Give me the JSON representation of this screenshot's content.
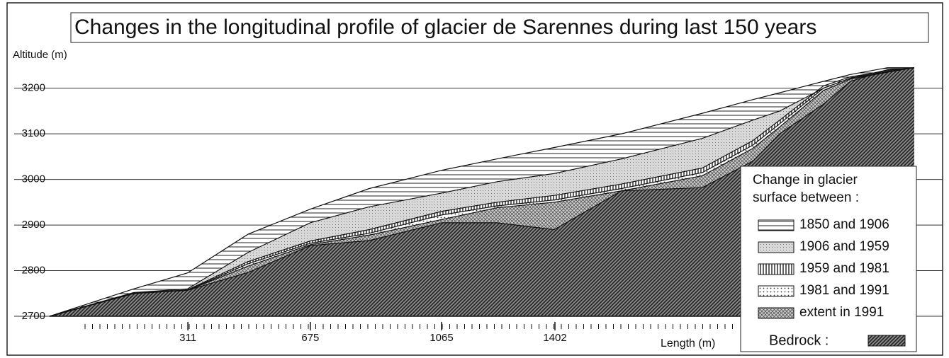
{
  "chart_data": {
    "type": "area",
    "title": "Changes in the longitudinal profile of glacier de Sarennes during last 150 years",
    "y_label": "Altitude (m)",
    "x_label": "Length (m)",
    "legend_title": [
      "Change in glacier",
      "surface between :"
    ],
    "bedrock_label": "Bedrock :",
    "x": [
      -100,
      150,
      310,
      490,
      675,
      850,
      1065,
      1230,
      1400,
      1600,
      1840,
      1990,
      2070,
      2200,
      2280,
      2390,
      2470
    ],
    "xlim": [
      -100,
      2470
    ],
    "xticks": [
      311,
      675,
      1065,
      1402
    ],
    "ylim": [
      2700,
      3260
    ],
    "yticks": [
      2700,
      2800,
      2900,
      3000,
      3100,
      3200
    ],
    "grid": true,
    "series": [
      {
        "name": "1850 and 1906",
        "pattern": "horizontal",
        "values": [
          2700,
          2760,
          2795,
          2880,
          2935,
          2980,
          3020,
          3045,
          3070,
          3100,
          3145,
          3175,
          3190,
          3215,
          3230,
          3245,
          3245
        ]
      },
      {
        "name": "1906 and 1959",
        "pattern": "stipple",
        "values": [
          2700,
          2752,
          2760,
          2840,
          2905,
          2940,
          2970,
          2995,
          3013,
          3045,
          3090,
          3130,
          3150,
          3200,
          3222,
          3240,
          3245
        ]
      },
      {
        "name": "1959 and 1981",
        "pattern": "vertical",
        "values": [
          2700,
          2750,
          2758,
          2820,
          2865,
          2890,
          2930,
          2950,
          2965,
          2990,
          3025,
          3085,
          3130,
          3205,
          3225,
          3238,
          3245
        ]
      },
      {
        "name": "1981 and 1991",
        "pattern": "dots",
        "values": [
          2700,
          2750,
          2757,
          2815,
          2860,
          2882,
          2922,
          2942,
          2955,
          2980,
          3015,
          3075,
          3122,
          3200,
          3222,
          3236,
          3245
        ]
      },
      {
        "name": "extent in 1991",
        "pattern": "crosshatch",
        "values": [
          2700,
          2750,
          2757,
          2810,
          2857,
          2878,
          2912,
          2938,
          2950,
          2975,
          3008,
          3068,
          3115,
          3195,
          3220,
          3235,
          3245
        ]
      },
      {
        "name": "Bedrock",
        "pattern": "diagonal",
        "values": [
          2700,
          2750,
          2757,
          2796,
          2855,
          2866,
          2905,
          2905,
          2890,
          2975,
          2982,
          3040,
          3100,
          3165,
          3215,
          3240,
          3245
        ]
      }
    ]
  }
}
